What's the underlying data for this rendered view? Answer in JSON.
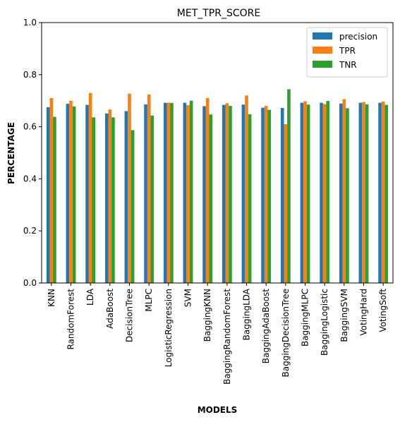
{
  "chart_data": {
    "type": "bar",
    "title": "MET_TPR_SCORE",
    "xlabel": "MODELS",
    "ylabel": "PERCENTAGE",
    "ylim": [
      0,
      1.0
    ],
    "yticks": [
      "0.0",
      "0.2",
      "0.4",
      "0.6",
      "0.8",
      "1.0"
    ],
    "grid": false,
    "legend_position": "top-right",
    "categories": [
      "KNN",
      "RandomForest",
      "LDA",
      "AdaBoost",
      "DecisionTree",
      "MLPC",
      "LogisticRegression",
      "SVM",
      "BaggingKNN",
      "BaggingRandomForest",
      "BaggingLDA",
      "BaggingAdaBoost",
      "BaggingDecisionTree",
      "BaggingMLPC",
      "BaggingLogistic",
      "BaggingSVM",
      "VotingHard",
      "VotingSoft"
    ],
    "series": [
      {
        "name": "precision",
        "color": "#1f77b4",
        "values": [
          0.675,
          0.688,
          0.684,
          0.651,
          0.66,
          0.686,
          0.692,
          0.692,
          0.679,
          0.684,
          0.685,
          0.673,
          0.672,
          0.692,
          0.692,
          0.689,
          0.692,
          0.692
        ]
      },
      {
        "name": "TPR",
        "color": "#ff7f0e",
        "values": [
          0.71,
          0.7,
          0.73,
          0.666,
          0.727,
          0.724,
          0.692,
          0.683,
          0.71,
          0.69,
          0.72,
          0.68,
          0.61,
          0.698,
          0.687,
          0.706,
          0.695,
          0.697
        ]
      },
      {
        "name": "TNR",
        "color": "#2ca02c",
        "values": [
          0.638,
          0.678,
          0.636,
          0.636,
          0.587,
          0.643,
          0.691,
          0.7,
          0.647,
          0.68,
          0.648,
          0.665,
          0.744,
          0.685,
          0.699,
          0.671,
          0.686,
          0.684
        ]
      }
    ]
  }
}
